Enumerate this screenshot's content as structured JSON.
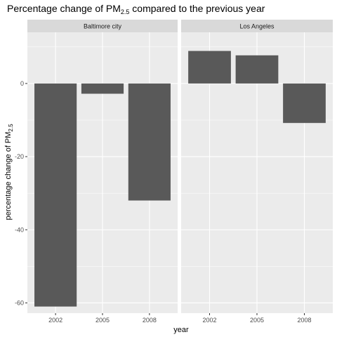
{
  "chart_data": {
    "type": "bar",
    "title": {
      "prefix": "Percentage change of PM",
      "subscript": "2.5",
      "suffix": " compared to the previous year"
    },
    "xlabel": "year",
    "ylabel": {
      "prefix": "percentage change of PM",
      "subscript": "2.5"
    },
    "categories": [
      "2002",
      "2005",
      "2008"
    ],
    "ylim": [
      -62.8,
      14.0
    ],
    "yticks": [
      -60,
      -40,
      -20,
      0
    ],
    "ytick_labels": [
      "-60",
      "-40",
      "-20",
      "0"
    ],
    "grid": true,
    "bar_color": "#595959",
    "panel_background": "#ebebeb",
    "strip_background": "#d9d9d9",
    "facets": [
      {
        "label": "Baltimore city",
        "values": [
          -61,
          -2.8,
          -32
        ]
      },
      {
        "label": "Los Angeles",
        "values": [
          8.9,
          7.7,
          -10.8
        ]
      }
    ]
  }
}
